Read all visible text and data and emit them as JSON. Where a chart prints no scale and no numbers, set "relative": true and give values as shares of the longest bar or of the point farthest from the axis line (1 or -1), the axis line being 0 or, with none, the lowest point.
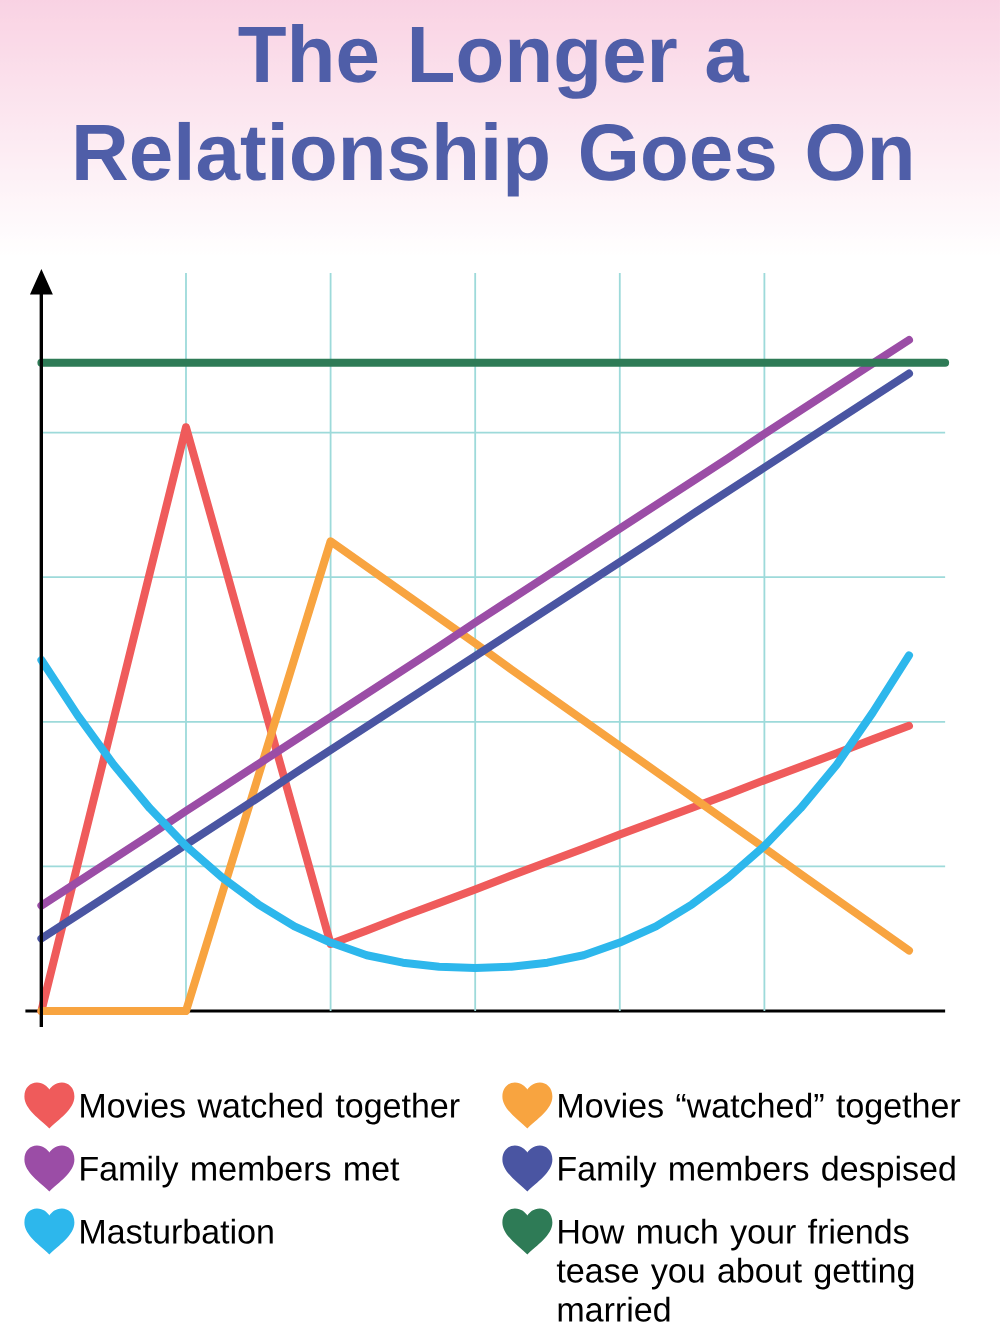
{
  "chart_data": {
    "type": "line",
    "title": "The Longer a Relationship Goes On",
    "relative": true,
    "categories": [
      null,
      null,
      null,
      null,
      null,
      null,
      null,
      null,
      null,
      null,
      null,
      null,
      null,
      null,
      null,
      null,
      null,
      null,
      null,
      null,
      null,
      null,
      null,
      null,
      null,
      null
    ],
    "grid": true,
    "legend": "bottom",
    "series": [
      {
        "name": "Movies watched together",
        "color": "#ef5b5b",
        "values": [
          0,
          0.218,
          0.435,
          0.653,
          0.87,
          0.678,
          0.485,
          0.293,
          0.1,
          0.12,
          0.141,
          0.161,
          0.181,
          0.202,
          0.222,
          0.242,
          0.263,
          0.283,
          0.303,
          0.323,
          0.344,
          0.364,
          0.384,
          0.405,
          0.425,
          null
        ]
      },
      {
        "name": "Movies “watched” together",
        "color": "#f8a440",
        "values": [
          0,
          0,
          0,
          0,
          0,
          0.175,
          0.35,
          0.525,
          0.7,
          0.662,
          0.624,
          0.586,
          0.548,
          0.509,
          0.471,
          0.433,
          0.395,
          0.357,
          0.319,
          0.281,
          0.243,
          0.204,
          0.166,
          0.128,
          0.09,
          null
        ]
      },
      {
        "name": "Family members met",
        "color": "#9b4da6",
        "values": [
          0.157,
          0.192,
          0.227,
          0.262,
          0.298,
          0.333,
          0.368,
          0.403,
          0.438,
          0.473,
          0.508,
          0.543,
          0.579,
          0.614,
          0.649,
          0.684,
          0.719,
          0.754,
          0.789,
          0.824,
          0.86,
          0.895,
          0.93,
          0.965,
          1,
          null
        ]
      },
      {
        "name": "Family members despised",
        "color": "#4a55a2",
        "values": [
          0.108,
          0.143,
          0.178,
          0.213,
          0.248,
          0.283,
          0.318,
          0.354,
          0.389,
          0.424,
          0.459,
          0.494,
          0.529,
          0.564,
          0.599,
          0.634,
          0.669,
          0.704,
          0.74,
          0.775,
          0.81,
          0.845,
          0.88,
          0.915,
          0.95,
          null
        ]
      },
      {
        "name": "Masturbation",
        "color": "#2db7ec",
        "values": [
          0.523,
          0.441,
          0.367,
          0.302,
          0.246,
          0.199,
          0.159,
          0.126,
          0.102,
          0.083,
          0.072,
          0.066,
          0.064,
          0.066,
          0.072,
          0.083,
          0.102,
          0.126,
          0.159,
          0.199,
          0.246,
          0.302,
          0.367,
          0.445,
          0.53,
          null
        ]
      },
      {
        "name": "How much your friends tease you about getting married",
        "color": "#2e7b56",
        "values": [
          0.966,
          0.966,
          0.966,
          0.966,
          0.966,
          0.966,
          0.966,
          0.966,
          0.966,
          0.966,
          0.966,
          0.966,
          0.966,
          0.966,
          0.966,
          0.966,
          0.966,
          0.966,
          0.966,
          0.966,
          0.966,
          0.966,
          0.966,
          0.966,
          0.966,
          0.966
        ]
      }
    ]
  }
}
